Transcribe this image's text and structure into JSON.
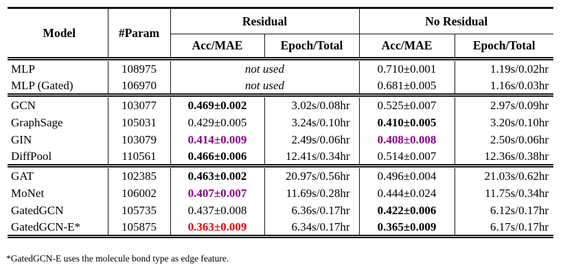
{
  "colors": {
    "highlight_purple": "#8B008B",
    "highlight_red": "#EE0000",
    "rule_ink": "#151515"
  },
  "table": {
    "header": {
      "model": "Model",
      "param": "#Param",
      "residual": "Residual",
      "no_residual": "No Residual",
      "acc_mae_res": "Acc/MAE",
      "epoch_total_res": "Epoch/Total",
      "acc_mae_nores": "Acc/MAE",
      "epoch_total_nores": "Epoch/Total"
    },
    "sections": [
      {
        "rows": [
          {
            "model": "MLP",
            "param": "108975",
            "not_used": "not used",
            "nores_acc": "0.710±0.001",
            "nores_time": "1.19s/0.02hr"
          },
          {
            "model": "MLP (Gated)",
            "param": "106970",
            "not_used": "not used",
            "nores_acc": "0.681±0.005",
            "nores_time": "1.16s/0.03hr"
          }
        ]
      },
      {
        "rows": [
          {
            "model": "GCN",
            "param": "103077",
            "res_acc": "0.469±0.002",
            "res_time": "3.02s/0.08hr",
            "nores_acc": "0.525±0.007",
            "nores_time": "2.97s/0.09hr"
          },
          {
            "model": "GraphSage",
            "param": "105031",
            "res_acc": "0.429±0.005",
            "res_time": "3.24s/0.10hr",
            "nores_acc": "0.410±0.005",
            "nores_time": "3.20s/0.10hr"
          },
          {
            "model": "GIN",
            "param": "103079",
            "res_acc": "0.414±0.009",
            "res_time": "2.49s/0.06hr",
            "nores_acc": "0.408±0.008",
            "nores_time": "2.50s/0.06hr"
          },
          {
            "model": "DiffPool",
            "param": "110561",
            "res_acc": "0.466±0.006",
            "res_time": "12.41s/0.34hr",
            "nores_acc": "0.514±0.007",
            "nores_time": "12.36s/0.38hr"
          }
        ]
      },
      {
        "rows": [
          {
            "model": "GAT",
            "param": "102385",
            "res_acc": "0.463±0.002",
            "res_time": "20.97s/0.56hr",
            "nores_acc": "0.496±0.004",
            "nores_time": "21.03s/0.62hr"
          },
          {
            "model": "MoNet",
            "param": "106002",
            "res_acc": "0.407±0.007",
            "res_time": "11.69s/0.28hr",
            "nores_acc": "0.444±0.024",
            "nores_time": "11.75s/0.34hr"
          },
          {
            "model": "GatedGCN",
            "param": "105735",
            "res_acc": "0.437±0.008",
            "res_time": "6.36s/0.17hr",
            "nores_acc": "0.422±0.006",
            "nores_time": "6.12s/0.17hr"
          },
          {
            "model": "GatedGCN-E*",
            "param": "105875",
            "res_acc": "0.363±0.009",
            "res_time": "6.34s/0.17hr",
            "nores_acc": "0.365±0.009",
            "nores_time": "6.17s/0.17hr"
          }
        ]
      }
    ],
    "footnote": "*GatedGCN-E uses the molecule bond type as edge feature."
  }
}
